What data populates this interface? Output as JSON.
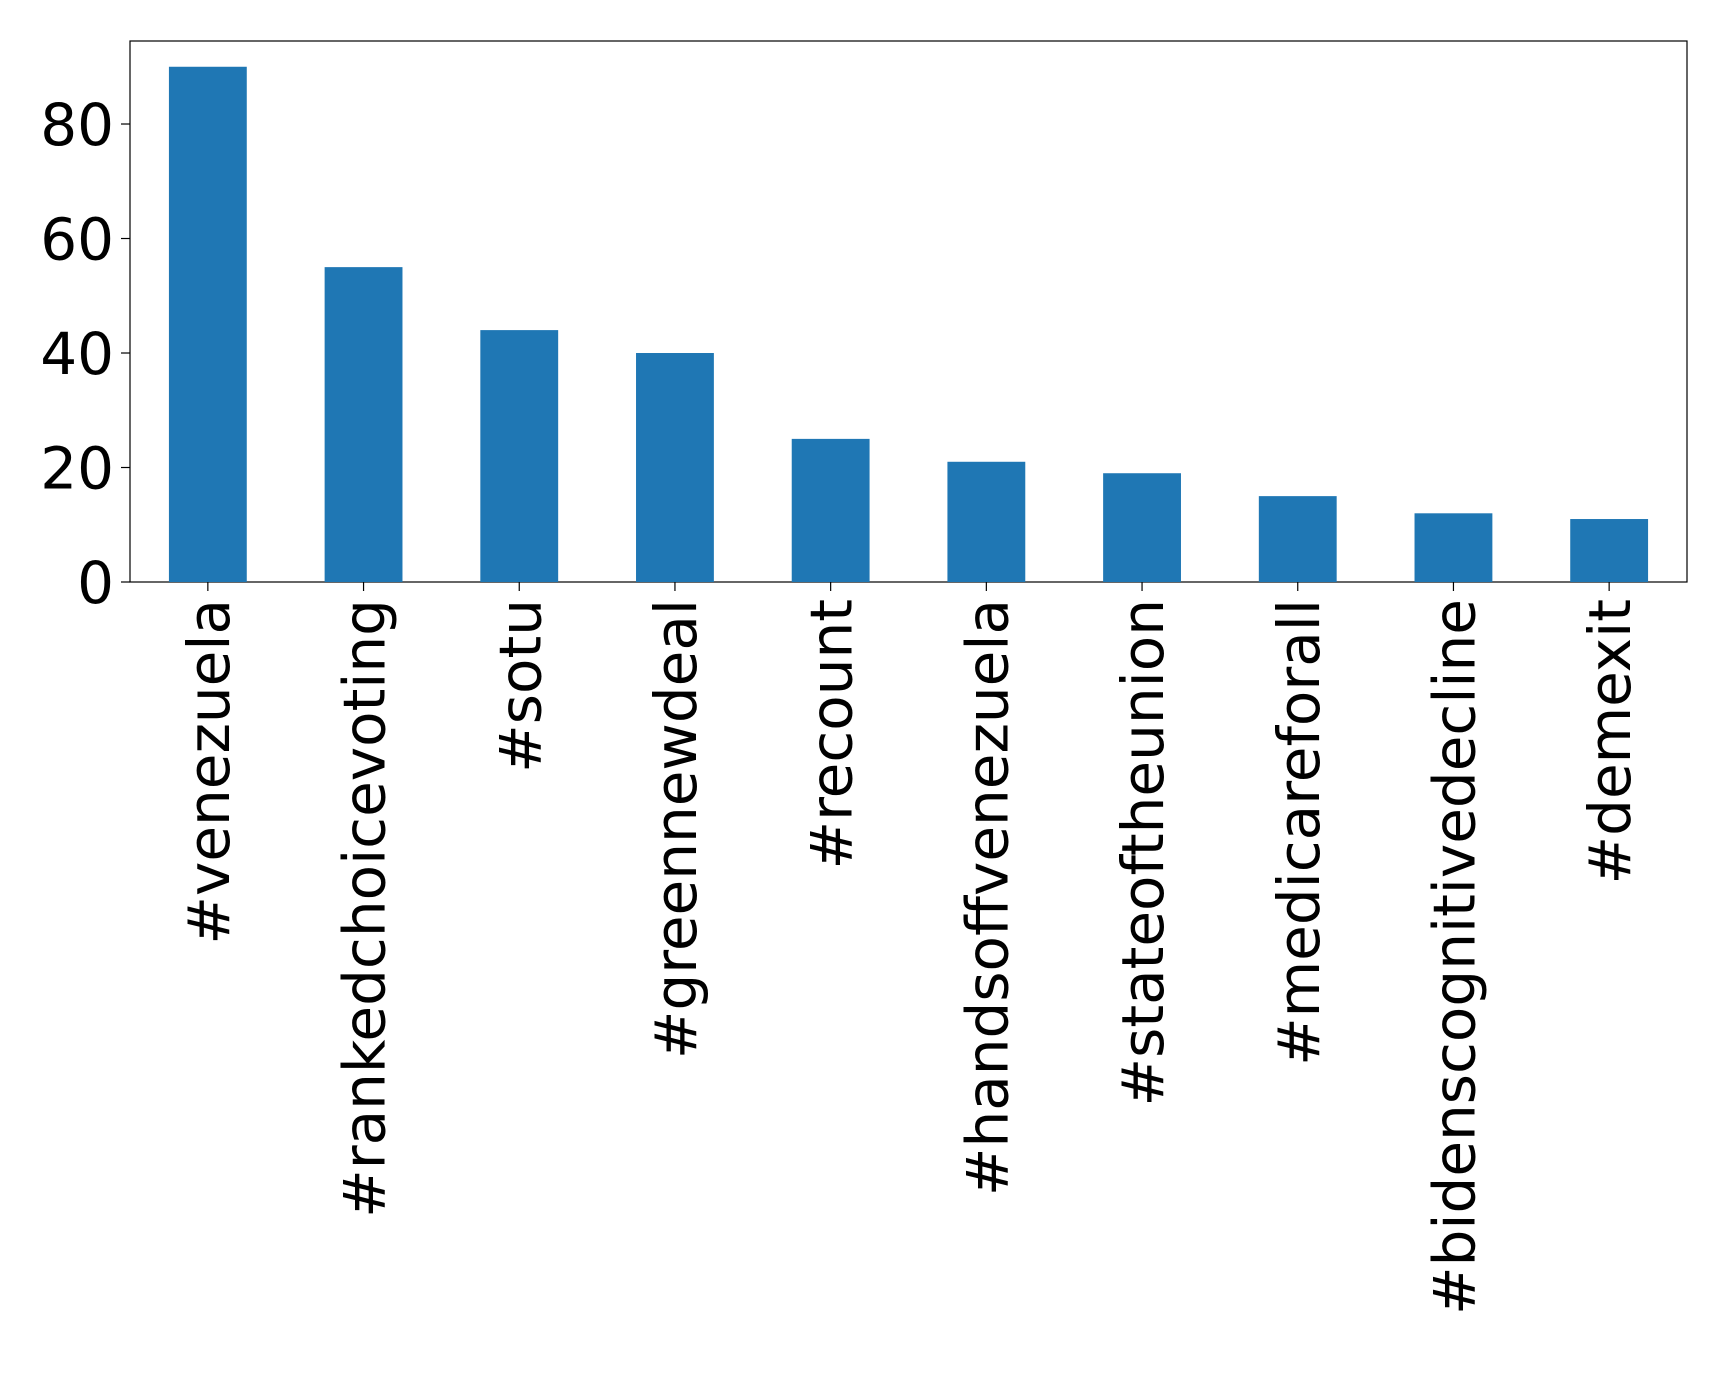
{
  "chart_data": {
    "type": "bar",
    "categories": [
      "#venezuela",
      "#rankedchoicevoting",
      "#sotu",
      "#greennewdeal",
      "#recount",
      "#handsoffvenezuela",
      "#stateoftheunion",
      "#medicareforall",
      "#bidenscognitivedecline",
      "#demexit"
    ],
    "values": [
      90,
      55,
      44,
      40,
      25,
      21,
      19,
      15,
      12,
      11
    ],
    "color": "#1f77b4",
    "ylim": [
      0,
      94.5
    ],
    "yticks": [
      0,
      20,
      40,
      60,
      80
    ],
    "grid": false
  }
}
